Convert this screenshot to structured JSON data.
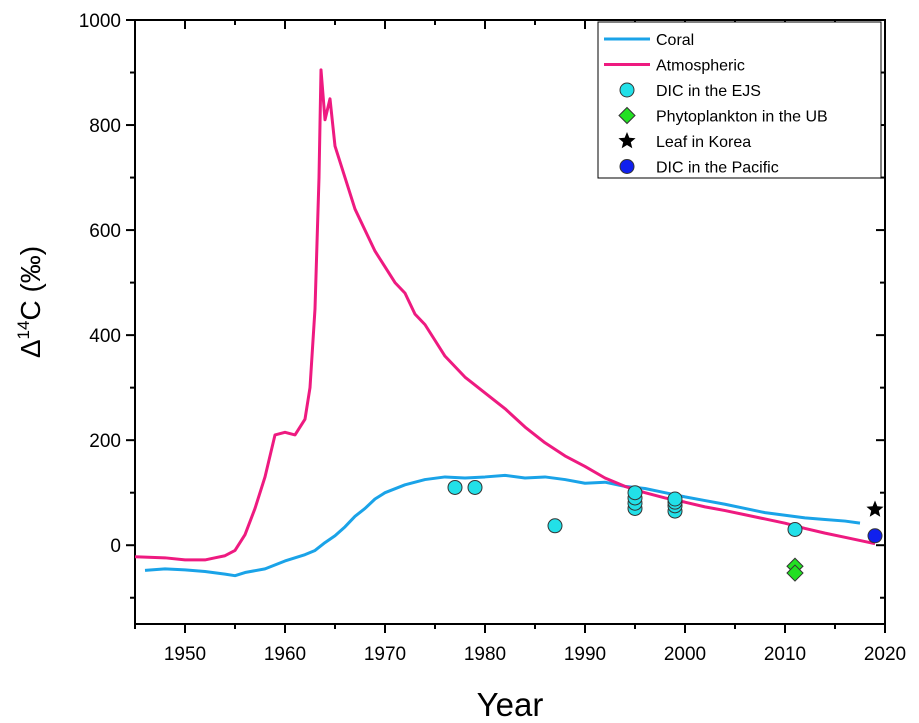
{
  "chart_data": {
    "type": "line",
    "xlabel": "Year",
    "ylabel_main": "Δ",
    "ylabel_sup": "14",
    "ylabel_rest": "C (‰)",
    "xlim": [
      1945,
      2020
    ],
    "ylim": [
      -150,
      1000
    ],
    "x_ticks": [
      1950,
      1960,
      1970,
      1980,
      1990,
      2000,
      2010,
      2020
    ],
    "y_ticks": [
      0,
      200,
      400,
      600,
      800,
      1000
    ],
    "grid": false,
    "legend_position": "top-right",
    "colors": {
      "coral": "#1aa3e8",
      "atmospheric": "#ee1a80",
      "dic_ejs": "#22e0e8",
      "phytoplankton": "#22e022",
      "leaf": "#000000",
      "dic_pacific": "#1020ee"
    },
    "series": [
      {
        "name": "Coral",
        "kind": "line",
        "x": [
          1946,
          1948,
          1950,
          1952,
          1954,
          1955,
          1956,
          1958,
          1960,
          1962,
          1963,
          1964,
          1965,
          1966,
          1967,
          1968,
          1969,
          1970,
          1972,
          1974,
          1976,
          1978,
          1980,
          1982,
          1984,
          1986,
          1988,
          1990,
          1992,
          1994,
          1996,
          1998,
          2000,
          2002,
          2004,
          2006,
          2008,
          2010,
          2012,
          2014,
          2016,
          2017.5
        ],
        "y": [
          -48,
          -45,
          -47,
          -50,
          -55,
          -58,
          -52,
          -45,
          -30,
          -18,
          -10,
          5,
          18,
          35,
          55,
          70,
          88,
          100,
          115,
          125,
          130,
          128,
          130,
          133,
          128,
          130,
          125,
          118,
          120,
          112,
          108,
          100,
          92,
          85,
          78,
          70,
          62,
          57,
          52,
          49,
          46,
          42
        ]
      },
      {
        "name": "Atmospheric",
        "kind": "line",
        "x": [
          1945,
          1948,
          1950,
          1952,
          1953,
          1954,
          1955,
          1956,
          1957,
          1958,
          1959,
          1960,
          1961,
          1962,
          1962.5,
          1963,
          1963.4,
          1963.6,
          1964,
          1964.5,
          1965,
          1966,
          1967,
          1968,
          1969,
          1970,
          1971,
          1972,
          1973,
          1974,
          1975,
          1976,
          1977,
          1978,
          1980,
          1982,
          1984,
          1986,
          1988,
          1990,
          1992,
          1994,
          1996,
          1998,
          2000,
          2002,
          2004,
          2006,
          2008,
          2010,
          2012,
          2014,
          2016,
          2018,
          2019
        ],
        "y": [
          -22,
          -24,
          -28,
          -28,
          -24,
          -20,
          -10,
          20,
          70,
          130,
          210,
          215,
          210,
          240,
          300,
          450,
          700,
          905,
          810,
          850,
          760,
          700,
          640,
          600,
          560,
          530,
          500,
          480,
          440,
          420,
          390,
          360,
          340,
          320,
          290,
          260,
          225,
          195,
          170,
          150,
          128,
          112,
          100,
          90,
          82,
          73,
          66,
          58,
          50,
          42,
          32,
          23,
          15,
          7,
          3
        ]
      },
      {
        "name": "DIC in the EJS",
        "kind": "scatter",
        "marker": "circle",
        "x": [
          1977,
          1979,
          1987,
          1995,
          1995,
          1995,
          1995,
          1999,
          1999,
          1999,
          1999,
          2011
        ],
        "y": [
          110,
          110,
          37,
          70,
          80,
          90,
          100,
          65,
          75,
          82,
          88,
          30
        ]
      },
      {
        "name": "Phytoplankton in the UB",
        "kind": "scatter",
        "marker": "diamond",
        "x": [
          2011,
          2011
        ],
        "y": [
          -40,
          -53
        ]
      },
      {
        "name": "Leaf in Korea",
        "kind": "scatter",
        "marker": "star",
        "x": [
          2019
        ],
        "y": [
          68
        ]
      },
      {
        "name": "DIC in the Pacific",
        "kind": "scatter",
        "marker": "circle",
        "x": [
          2019
        ],
        "y": [
          18
        ]
      }
    ]
  }
}
